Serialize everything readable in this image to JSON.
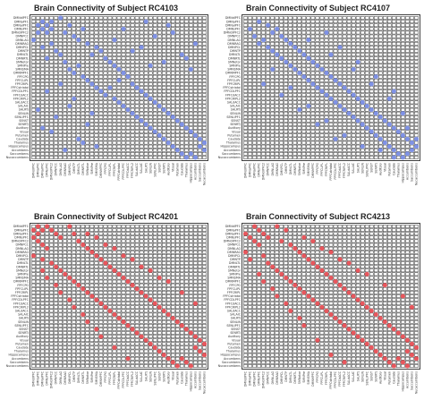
{
  "regions": [
    "DMNdIPFC",
    "DMNaPFC",
    "DMNaIPFC",
    "DMNsPFC",
    "DMNdIPFC2",
    "DMNPCC",
    "DMNLAG",
    "DMNRAG",
    "DMNPCL",
    "DMNTP",
    "DMNLTL",
    "DMNRTL",
    "SMNotor",
    "SMNPre",
    "SMNSMA",
    "DMNMPFC",
    "FPFCPG",
    "FPFCLIPL",
    "FPFCRIPL",
    "FPFCstriatal",
    "FPFCDLPFC",
    "FPFCdACC",
    "FPFCRIPL2",
    "SALdACC",
    "SALAIC",
    "SALRTJ",
    "SENLIN",
    "SENLIPFC",
    "SENST",
    "SENRTJ",
    "Auditory",
    "Visual",
    "Putamen",
    "Caudate",
    "Thalamus",
    "Hippocampus",
    "Accumbens",
    "Saccumbens",
    "Nucaccumbens"
  ],
  "chart_data": [
    {
      "type": "heatmap",
      "title": "Brain Connectivity of Subject RC4103",
      "color": "#7f92e6",
      "cells": [
        [
          1,
          2
        ],
        [
          1,
          4
        ],
        [
          2,
          3
        ],
        [
          3,
          4
        ],
        [
          0,
          6
        ],
        [
          2,
          8
        ],
        [
          4,
          7
        ],
        [
          5,
          9
        ],
        [
          6,
          10
        ],
        [
          3,
          11
        ],
        [
          7,
          12
        ],
        [
          8,
          14
        ],
        [
          9,
          15
        ],
        [
          10,
          13
        ],
        [
          11,
          16
        ],
        [
          12,
          17
        ],
        [
          13,
          18
        ],
        [
          14,
          19
        ],
        [
          15,
          20
        ],
        [
          16,
          21
        ],
        [
          17,
          19
        ],
        [
          18,
          22
        ],
        [
          19,
          23
        ],
        [
          20,
          24
        ],
        [
          21,
          25
        ],
        [
          22,
          26
        ],
        [
          23,
          27
        ],
        [
          24,
          28
        ],
        [
          25,
          29
        ],
        [
          26,
          30
        ],
        [
          27,
          31
        ],
        [
          28,
          32
        ],
        [
          29,
          33
        ],
        [
          30,
          34
        ],
        [
          31,
          35
        ],
        [
          32,
          36
        ],
        [
          33,
          37
        ],
        [
          34,
          38
        ],
        [
          35,
          37
        ],
        [
          36,
          38
        ],
        [
          2,
          30
        ],
        [
          5,
          27
        ],
        [
          8,
          24
        ],
        [
          10,
          33
        ],
        [
          12,
          29
        ],
        [
          14,
          35
        ],
        [
          3,
          20
        ],
        [
          6,
          18
        ],
        [
          1,
          25
        ],
        [
          4,
          31
        ],
        [
          7,
          36
        ],
        [
          9,
          22
        ],
        [
          11,
          34
        ],
        [
          13,
          26
        ]
      ]
    },
    {
      "type": "heatmap",
      "title": "Brain Connectivity of Subject RC4107",
      "color": "#7f92e6",
      "cells": [
        [
          1,
          3
        ],
        [
          2,
          5
        ],
        [
          3,
          7
        ],
        [
          4,
          6
        ],
        [
          5,
          8
        ],
        [
          6,
          9
        ],
        [
          7,
          10
        ],
        [
          8,
          11
        ],
        [
          9,
          12
        ],
        [
          10,
          13
        ],
        [
          11,
          14
        ],
        [
          12,
          15
        ],
        [
          13,
          16
        ],
        [
          14,
          17
        ],
        [
          15,
          18
        ],
        [
          16,
          19
        ],
        [
          17,
          20
        ],
        [
          18,
          21
        ],
        [
          19,
          22
        ],
        [
          20,
          23
        ],
        [
          21,
          24
        ],
        [
          22,
          25
        ],
        [
          23,
          26
        ],
        [
          24,
          27
        ],
        [
          25,
          28
        ],
        [
          26,
          29
        ],
        [
          27,
          30
        ],
        [
          28,
          31
        ],
        [
          29,
          32
        ],
        [
          30,
          33
        ],
        [
          31,
          34
        ],
        [
          32,
          35
        ],
        [
          33,
          36
        ],
        [
          34,
          37
        ],
        [
          35,
          38
        ],
        [
          36,
          37
        ],
        [
          4,
          18
        ],
        [
          8,
          21
        ],
        [
          12,
          25
        ],
        [
          16,
          29
        ],
        [
          20,
          33
        ],
        [
          6,
          14
        ],
        [
          10,
          19
        ],
        [
          14,
          24
        ],
        [
          18,
          28
        ],
        [
          22,
          32
        ],
        [
          26,
          35
        ],
        [
          30,
          36
        ],
        [
          33,
          38
        ]
      ]
    },
    {
      "type": "heatmap",
      "title": "Brain Connectivity of Subject RC4201",
      "color": "#e8575d",
      "cells": [
        [
          0,
          1
        ],
        [
          0,
          3
        ],
        [
          1,
          2
        ],
        [
          1,
          4
        ],
        [
          2,
          5
        ],
        [
          3,
          6
        ],
        [
          0,
          8
        ],
        [
          2,
          9
        ],
        [
          4,
          10
        ],
        [
          5,
          11
        ],
        [
          6,
          12
        ],
        [
          7,
          13
        ],
        [
          8,
          14
        ],
        [
          9,
          15
        ],
        [
          10,
          16
        ],
        [
          11,
          17
        ],
        [
          12,
          18
        ],
        [
          13,
          19
        ],
        [
          14,
          20
        ],
        [
          15,
          21
        ],
        [
          16,
          22
        ],
        [
          17,
          23
        ],
        [
          18,
          24
        ],
        [
          19,
          25
        ],
        [
          20,
          26
        ],
        [
          21,
          27
        ],
        [
          22,
          28
        ],
        [
          23,
          29
        ],
        [
          24,
          30
        ],
        [
          25,
          31
        ],
        [
          26,
          32
        ],
        [
          27,
          33
        ],
        [
          28,
          34
        ],
        [
          29,
          35
        ],
        [
          30,
          36
        ],
        [
          31,
          37
        ],
        [
          32,
          38
        ],
        [
          33,
          36
        ],
        [
          34,
          37
        ],
        [
          35,
          38
        ],
        [
          3,
          14
        ],
        [
          6,
          18
        ],
        [
          9,
          22
        ],
        [
          12,
          26
        ],
        [
          15,
          30
        ],
        [
          18,
          33
        ],
        [
          21,
          36
        ],
        [
          2,
          12
        ],
        [
          5,
          16
        ],
        [
          8,
          20
        ],
        [
          11,
          24
        ],
        [
          14,
          28
        ]
      ]
    },
    {
      "type": "heatmap",
      "title": "Brain Connectivity of Subject RC4213",
      "color": "#e8575d",
      "cells": [
        [
          0,
          2
        ],
        [
          1,
          3
        ],
        [
          2,
          4
        ],
        [
          3,
          5
        ],
        [
          0,
          7
        ],
        [
          1,
          9
        ],
        [
          4,
          8
        ],
        [
          5,
          10
        ],
        [
          6,
          11
        ],
        [
          7,
          12
        ],
        [
          8,
          13
        ],
        [
          9,
          14
        ],
        [
          10,
          15
        ],
        [
          11,
          16
        ],
        [
          12,
          17
        ],
        [
          13,
          18
        ],
        [
          14,
          19
        ],
        [
          15,
          20
        ],
        [
          16,
          21
        ],
        [
          17,
          22
        ],
        [
          18,
          23
        ],
        [
          19,
          24
        ],
        [
          20,
          25
        ],
        [
          21,
          26
        ],
        [
          22,
          27
        ],
        [
          23,
          28
        ],
        [
          24,
          29
        ],
        [
          25,
          30
        ],
        [
          26,
          31
        ],
        [
          27,
          32
        ],
        [
          28,
          33
        ],
        [
          29,
          34
        ],
        [
          30,
          35
        ],
        [
          31,
          36
        ],
        [
          32,
          37
        ],
        [
          33,
          38
        ],
        [
          34,
          36
        ],
        [
          35,
          37
        ],
        [
          36,
          38
        ],
        [
          4,
          15
        ],
        [
          7,
          19
        ],
        [
          10,
          23
        ],
        [
          13,
          27
        ],
        [
          16,
          31
        ],
        [
          19,
          35
        ],
        [
          22,
          37
        ],
        [
          3,
          13
        ],
        [
          6,
          17
        ],
        [
          9,
          21
        ],
        [
          12,
          25
        ]
      ]
    }
  ]
}
